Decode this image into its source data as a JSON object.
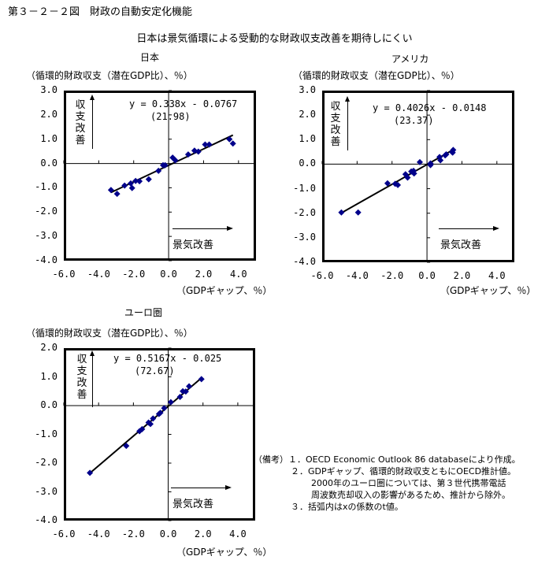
{
  "header": {
    "figure_title": "第３－２－２図　財政の自動安定化機能",
    "subtitle": "日本は景気循環による受動的な財政収支改善を期待しにくい"
  },
  "annotations": {
    "y_arrow_label": "収支改善",
    "x_arrow_label": "景気改善"
  },
  "notes": {
    "label": "（備考）",
    "items": [
      "１．OECD Economic Outlook 86 databaseにより作成。",
      "２．GDPギャップ、循環的財政収支ともにOECD推計値。",
      "2000年のユーロ圏については、第３世代携帯電話",
      "周波数売却収入の影響があるため、推計から除外。",
      "３．括弧内はxの係数のt値。"
    ]
  },
  "chart_data": [
    {
      "type": "scatter",
      "title": "日本",
      "ylabel": "（循環的財政収支（潜在GDP比）、％）",
      "xlabel": "（GDPギャップ、％）",
      "xlim": [
        -6,
        5
      ],
      "ylim": [
        -4,
        3
      ],
      "xticks": [
        "-6.0",
        "-4.0",
        "-2.0",
        "0.0",
        "2.0",
        "4.0"
      ],
      "yticks": [
        "3.0",
        "2.0",
        "1.0",
        "0.0",
        "-1.0",
        "-2.0",
        "-3.0",
        "-4.0"
      ],
      "equation": "y = 0.338x - 0.0767",
      "t_value": "(21.98)",
      "trend": {
        "slope": 0.338,
        "intercept": -0.0767
      },
      "marker_color": "#00008B",
      "points": [
        [
          -3.3,
          -1.09
        ],
        [
          -2.95,
          -1.25
        ],
        [
          -2.52,
          -0.91
        ],
        [
          -2.17,
          -0.82
        ],
        [
          -2.09,
          -1.01
        ],
        [
          -1.89,
          -0.72
        ],
        [
          -1.67,
          -0.73
        ],
        [
          -1.14,
          -0.65
        ],
        [
          -0.58,
          -0.3
        ],
        [
          -0.32,
          -0.07
        ],
        [
          -0.2,
          -0.07
        ],
        [
          0.23,
          0.24
        ],
        [
          0.38,
          0.13
        ],
        [
          1.12,
          0.37
        ],
        [
          1.48,
          0.53
        ],
        [
          1.7,
          0.49
        ],
        [
          2.09,
          0.78
        ],
        [
          2.32,
          0.78
        ],
        [
          3.48,
          1.0
        ],
        [
          3.68,
          0.82
        ]
      ]
    },
    {
      "type": "scatter",
      "title": "アメリカ",
      "ylabel": "（循環的財政収支（潜在GDP比）、％）",
      "xlabel": "（GDPギャップ、％）",
      "xlim": [
        -6,
        5
      ],
      "ylim": [
        -4,
        3
      ],
      "xticks": [
        "-6.0",
        "-4.0",
        "-2.0",
        "0.0",
        "2.0",
        "4.0"
      ],
      "yticks": [
        "3.0",
        "2.0",
        "1.0",
        "0.0",
        "-1.0",
        "-2.0",
        "-3.0",
        "-4.0"
      ],
      "equation": "y = 0.4026x - 0.0148",
      "t_value": "(23.37)",
      "trend": {
        "slope": 0.4026,
        "intercept": -0.0148
      },
      "marker_color": "#00008B",
      "points": [
        [
          -4.9,
          -1.97
        ],
        [
          -3.94,
          -1.97
        ],
        [
          -2.26,
          -0.78
        ],
        [
          -1.82,
          -0.8
        ],
        [
          -1.67,
          -0.85
        ],
        [
          -1.23,
          -0.41
        ],
        [
          -1.11,
          -0.55
        ],
        [
          -0.9,
          -0.3
        ],
        [
          -0.77,
          -0.27
        ],
        [
          -0.74,
          -0.38
        ],
        [
          -0.41,
          0.08
        ],
        [
          0.2,
          0.03
        ],
        [
          0.2,
          -0.04
        ],
        [
          0.72,
          0.29
        ],
        [
          0.77,
          0.16
        ],
        [
          1.04,
          0.36
        ],
        [
          1.1,
          0.4
        ],
        [
          1.44,
          0.49
        ],
        [
          1.47,
          0.47
        ],
        [
          1.5,
          0.58
        ]
      ]
    },
    {
      "type": "scatter",
      "title": "ユーロ圏",
      "ylabel": "（循環的財政収支（潜在GDP比）、％）",
      "xlabel": "（GDPギャップ、％）",
      "xlim": [
        -6,
        5
      ],
      "ylim": [
        -4,
        2
      ],
      "xticks": [
        "-6.0",
        "-4.0",
        "-2.0",
        "0.0",
        "2.0",
        "4.0"
      ],
      "yticks": [
        "2.0",
        "1.0",
        "0.0",
        "-1.0",
        "-2.0",
        "-3.0",
        "-4.0"
      ],
      "equation": "y = 0.5167x - 0.025",
      "t_value": "(72.67)",
      "trend": {
        "slope": 0.5167,
        "intercept": -0.025
      },
      "marker_color": "#00008B",
      "points": [
        [
          -4.5,
          -2.34
        ],
        [
          -2.41,
          -1.4
        ],
        [
          -1.65,
          -0.89
        ],
        [
          -1.5,
          -0.82
        ],
        [
          -1.13,
          -0.59
        ],
        [
          -1.02,
          -0.64
        ],
        [
          -0.87,
          -0.45
        ],
        [
          -0.53,
          -0.29
        ],
        [
          -0.45,
          -0.25
        ],
        [
          -0.23,
          -0.09
        ],
        [
          0.15,
          0.12
        ],
        [
          0.68,
          0.3
        ],
        [
          0.84,
          0.5
        ],
        [
          1.01,
          0.49
        ],
        [
          1.2,
          0.67
        ],
        [
          1.91,
          0.92
        ]
      ]
    }
  ]
}
